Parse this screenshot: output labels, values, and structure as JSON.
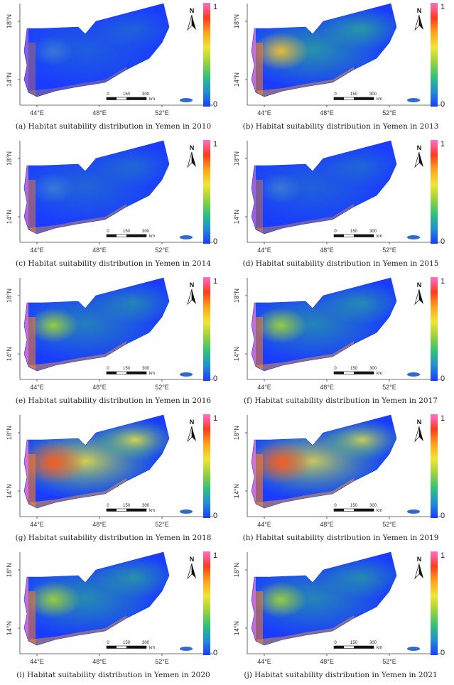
{
  "legend": {
    "max": "1",
    "min": "0",
    "colors": [
      "#ff6fd0",
      "#ff3a1a",
      "#ffa31a",
      "#f0e632",
      "#9ad33a",
      "#2ec27a",
      "#1f8fd6",
      "#1a3cff"
    ]
  },
  "axes": {
    "x_ticks": [
      "44°E",
      "48°E",
      "52°E"
    ],
    "y_ticks": [
      "18°N",
      "14°N"
    ]
  },
  "scale_bar": {
    "labels": [
      "0",
      "150",
      "300"
    ],
    "unit": "km"
  },
  "north_label": "N",
  "colors": {
    "ocean": "#ffffff",
    "low": "#1a3cff",
    "high": "#ff3a1a",
    "coast": "#ff6fd0"
  },
  "panels": [
    {
      "caption": "(a) Habitat suitability distribution in Yemen in 2010",
      "year": 2010,
      "hotspot_level": 0.05,
      "coast_level": 0.5
    },
    {
      "caption": "(b) Habitat suitability distribution in Yemen in 2013",
      "year": 2013,
      "hotspot_level": 0.45,
      "coast_level": 0.8
    },
    {
      "caption": "(c) Habitat suitability distribution in Yemen in 2014",
      "year": 2014,
      "hotspot_level": 0.1,
      "coast_level": 0.7
    },
    {
      "caption": "(d) Habitat suitability distribution in Yemen in 2015",
      "year": 2015,
      "hotspot_level": 0.08,
      "coast_level": 0.6
    },
    {
      "caption": "(e) Habitat suitability distribution in Yemen in 2016",
      "year": 2016,
      "hotspot_level": 0.3,
      "coast_level": 0.8
    },
    {
      "caption": "(f) Habitat suitability distribution in Yemen in 2017",
      "year": 2017,
      "hotspot_level": 0.35,
      "coast_level": 0.8
    },
    {
      "caption": "(g) Habitat suitability distribution in Yemen in 2018",
      "year": 2018,
      "hotspot_level": 0.7,
      "coast_level": 0.85
    },
    {
      "caption": "(h) Habitat suitability distribution in Yemen in 2019",
      "year": 2019,
      "hotspot_level": 0.65,
      "coast_level": 0.85
    },
    {
      "caption": "(i) Habitat suitability distribution in Yemen in 2020",
      "year": 2020,
      "hotspot_level": 0.4,
      "coast_level": 0.8
    },
    {
      "caption": "(j) Habitat suitability distribution in Yemen in 2021",
      "year": 2021,
      "hotspot_level": 0.35,
      "coast_level": 0.8
    }
  ]
}
